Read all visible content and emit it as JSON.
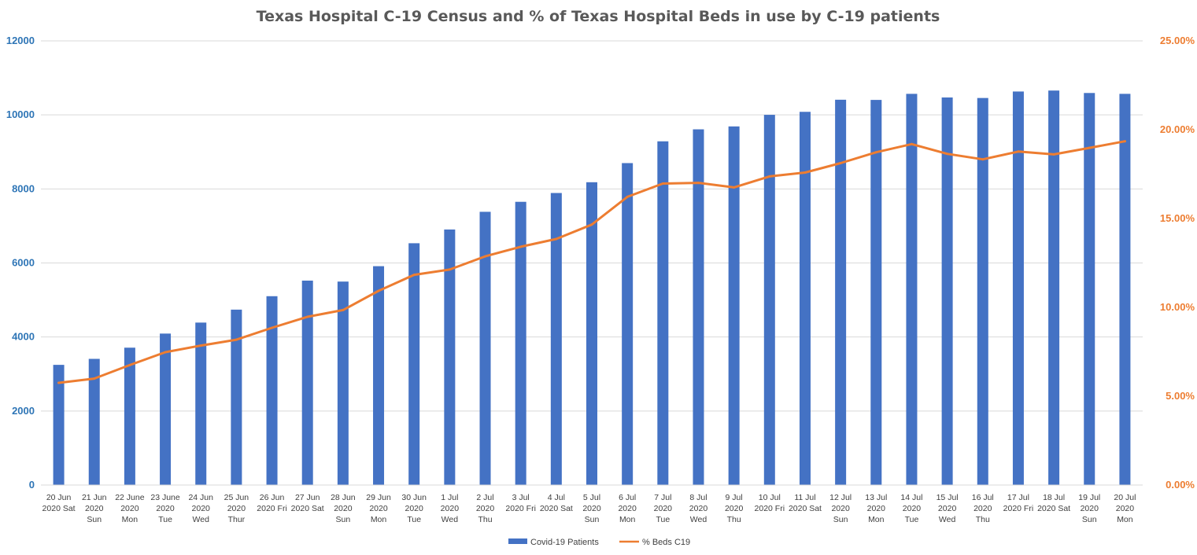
{
  "chart_data": {
    "type": "bar",
    "title": "Texas Hospital C-19 Census and % of Texas Hospital Beds in use by C-19 patients",
    "categories": [
      [
        "20 Jun",
        "2020 Sat"
      ],
      [
        "21 Jun",
        "2020",
        "Sun"
      ],
      [
        "22 June",
        "2020",
        "Mon"
      ],
      [
        "23 June",
        "2020",
        "Tue"
      ],
      [
        "24 Jun",
        "2020",
        "Wed"
      ],
      [
        "25 Jun",
        "2020",
        "Thur"
      ],
      [
        "26 Jun",
        "2020 Fri"
      ],
      [
        "27 Jun",
        "2020 Sat"
      ],
      [
        "28 Jun",
        "2020",
        "Sun"
      ],
      [
        "29 Jun",
        "2020",
        "Mon"
      ],
      [
        "30 Jun",
        "2020",
        "Tue"
      ],
      [
        "1 Jul",
        "2020",
        "Wed"
      ],
      [
        "2 Jul",
        "2020",
        "Thu"
      ],
      [
        "3 Jul",
        "2020 Fri"
      ],
      [
        "4 Jul",
        "2020 Sat"
      ],
      [
        "5 Jul",
        "2020",
        "Sun"
      ],
      [
        "6 Jul",
        "2020",
        "Mon"
      ],
      [
        "7 Jul",
        "2020",
        "Tue"
      ],
      [
        "8 Jul",
        "2020",
        "Wed"
      ],
      [
        "9 Jul",
        "2020",
        "Thu"
      ],
      [
        "10 Jul",
        "2020 Fri"
      ],
      [
        "11 Jul",
        "2020 Sat"
      ],
      [
        "12 Jul",
        "2020",
        "Sun"
      ],
      [
        "13 Jul",
        "2020",
        "Mon"
      ],
      [
        "14 Jul",
        "2020",
        "Tue"
      ],
      [
        "15 Jul",
        "2020",
        "Wed"
      ],
      [
        "16 Jul",
        "2020",
        "Thu"
      ],
      [
        "17 Jul",
        "2020 Fri"
      ],
      [
        "18 Jul",
        "2020 Sat"
      ],
      [
        "19 Jul",
        "2020",
        "Sun"
      ],
      [
        "20 Jul",
        "2020",
        "Mon"
      ]
    ],
    "series": [
      {
        "name": "Covid-19 Patients",
        "type": "bar",
        "axis": "left",
        "color": "#4472c4",
        "values": [
          3247,
          3409,
          3711,
          4092,
          4389,
          4739,
          5102,
          5523,
          5497,
          5913,
          6533,
          6904,
          7382,
          7652,
          7890,
          8181,
          8698,
          9286,
          9610,
          9689,
          10002,
          10083,
          10410,
          10405,
          10569,
          10471,
          10457,
          10632,
          10658,
          10592,
          10569
        ]
      },
      {
        "name": "% Beds C19",
        "type": "line",
        "axis": "right",
        "color": "#ed7d31",
        "values": [
          5.75,
          5.99,
          6.75,
          7.48,
          7.85,
          8.18,
          8.85,
          9.47,
          9.85,
          10.93,
          11.83,
          12.13,
          12.87,
          13.41,
          13.85,
          14.66,
          16.22,
          16.97,
          17.01,
          16.75,
          17.37,
          17.59,
          18.12,
          18.73,
          19.19,
          18.64,
          18.33,
          18.77,
          18.61,
          18.98,
          19.35
        ]
      }
    ],
    "y_left": {
      "min": 0,
      "max": 12000,
      "step": 2000,
      "ticks": [
        "0",
        "2000",
        "4000",
        "6000",
        "8000",
        "10000",
        "12000"
      ],
      "color": "#2e75b6"
    },
    "y_right": {
      "min": 0,
      "max": 25,
      "step": 5,
      "ticks": [
        "0.00%",
        "5.00%",
        "10.00%",
        "15.00%",
        "20.00%",
        "25.00%"
      ],
      "color": "#ed7d31"
    },
    "grid": true,
    "legend_position": "bottom",
    "xlabel": "",
    "ylabel": ""
  },
  "colors": {
    "bar": "#4472c4",
    "line": "#ed7d31",
    "left_axis": "#2e75b6",
    "right_axis": "#ed7d31",
    "gridline": "#d9d9d9",
    "title": "#595959"
  },
  "legend": {
    "bar_label": "Covid-19 Patients",
    "line_label": "% Beds C19"
  }
}
